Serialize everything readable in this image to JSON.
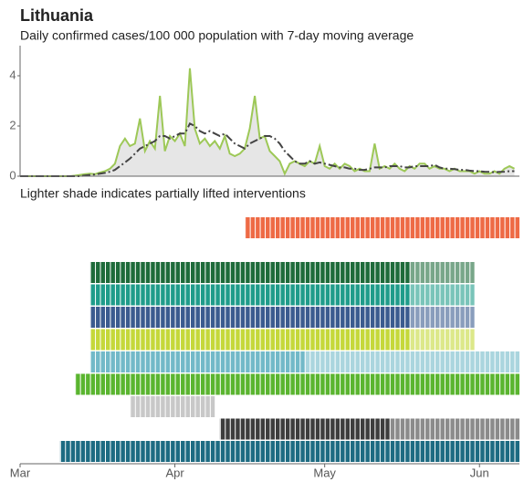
{
  "chart_data": [
    {
      "type": "line",
      "title": "Lithuania",
      "subtitle": "Daily confirmed cases/100 000 population with 7-day moving average",
      "ylim": [
        0,
        5.2
      ],
      "yticks": [
        0,
        2,
        4
      ],
      "series": [
        {
          "color": "#9dc857",
          "fill": "#e6e6e6",
          "values": [
            0,
            0,
            0,
            0,
            0,
            0,
            0,
            0,
            0,
            0,
            0,
            0.02,
            0.05,
            0.08,
            0.1,
            0.08,
            0.15,
            0.2,
            0.3,
            0.5,
            1.2,
            1.5,
            1.2,
            1.3,
            2.3,
            1.0,
            1.4,
            1.1,
            3.2,
            1.0,
            1.6,
            1.4,
            1.7,
            1.2,
            4.3,
            1.9,
            1.3,
            1.5,
            1.2,
            1.4,
            1.1,
            1.6,
            0.9,
            0.8,
            0.9,
            1.1,
            1.9,
            3.2,
            1.5,
            1.6,
            1.0,
            0.8,
            0.6,
            0.1,
            0.5,
            0.6,
            0.5,
            0.4,
            0.6,
            0.5,
            1.2,
            0.4,
            0.3,
            0.5,
            0.3,
            0.5,
            0.4,
            0.2,
            0.3,
            0.2,
            0.2,
            1.3,
            0.3,
            0.4,
            0.3,
            0.5,
            0.3,
            0.2,
            0.4,
            0.3,
            0.5,
            0.5,
            0.3,
            0.4,
            0.3,
            0.3,
            0.2,
            0.3,
            0.2,
            0.2,
            0.2,
            0.1,
            0.2,
            0.1,
            0.1,
            0.2,
            0.1,
            0.3,
            0.4,
            0.3
          ]
        },
        {
          "color": "#444444",
          "dash": "9 3 2 3",
          "values": [
            0,
            0,
            0,
            0,
            0,
            0,
            0,
            0,
            0,
            0,
            0,
            0,
            0,
            0.03,
            0.05,
            0.07,
            0.1,
            0.13,
            0.18,
            0.25,
            0.4,
            0.55,
            0.7,
            0.9,
            1.1,
            1.2,
            1.3,
            1.4,
            1.6,
            1.6,
            1.5,
            1.6,
            1.7,
            1.7,
            2.1,
            2.0,
            1.8,
            1.7,
            1.8,
            1.7,
            1.6,
            1.7,
            1.5,
            1.3,
            1.2,
            1.1,
            1.3,
            1.4,
            1.5,
            1.6,
            1.6,
            1.5,
            1.3,
            1.0,
            0.8,
            0.6,
            0.5,
            0.5,
            0.6,
            0.5,
            0.55,
            0.5,
            0.45,
            0.4,
            0.35,
            0.35,
            0.3,
            0.3,
            0.25,
            0.25,
            0.3,
            0.35,
            0.35,
            0.35,
            0.4,
            0.4,
            0.4,
            0.35,
            0.35,
            0.4,
            0.4,
            0.4,
            0.4,
            0.45,
            0.35,
            0.3,
            0.3,
            0.28,
            0.25,
            0.25,
            0.22,
            0.2,
            0.2,
            0.18,
            0.17,
            0.16,
            0.17,
            0.18,
            0.2,
            0.2
          ]
        }
      ]
    },
    {
      "type": "timeline",
      "note": "Lighter shade indicates partially lifted interventions",
      "categories": [
        "Mar",
        null,
        null,
        null,
        null,
        null,
        null,
        null,
        null,
        null,
        null,
        null,
        null,
        null,
        null,
        null,
        null,
        null,
        null,
        null,
        null,
        null,
        null,
        null,
        null,
        null,
        null,
        null,
        null,
        null,
        null,
        "Apr",
        null,
        null,
        null,
        null,
        null,
        null,
        null,
        null,
        null,
        null,
        null,
        null,
        null,
        null,
        null,
        null,
        null,
        null,
        null,
        null,
        null,
        null,
        null,
        null,
        null,
        null,
        null,
        null,
        null,
        "May",
        null,
        null,
        null,
        null,
        null,
        null,
        null,
        null,
        null,
        null,
        null,
        null,
        null,
        null,
        null,
        null,
        null,
        null,
        null,
        null,
        null,
        null,
        null,
        null,
        null,
        null,
        null,
        null,
        null,
        null,
        "Jun",
        null,
        null,
        null,
        null,
        null,
        null,
        null
      ],
      "bars": [
        {
          "color": "#ee6a45",
          "start": 45,
          "end": 100
        },
        {
          "color": "#1e6b3a",
          "start": 14,
          "lifted": 78,
          "end": 91
        },
        {
          "color": "#1f9c8a",
          "start": 14,
          "lifted": 78,
          "end": 91
        },
        {
          "color": "#3b5b8f",
          "start": 14,
          "lifted": 78,
          "end": 91
        },
        {
          "color": "#c5d83a",
          "start": 14,
          "lifted": 78,
          "end": 91
        },
        {
          "color": "#72b9c8",
          "start": 14,
          "lifted": 57,
          "end": 100
        },
        {
          "color": "#5ab52f",
          "start": 11,
          "end": 100
        },
        {
          "color": "#c8c8c8",
          "start": 22,
          "end": 39
        },
        {
          "color": "#3d3d3d",
          "start": 40,
          "lifted": 74,
          "end": 100
        },
        {
          "color": "#1d6b82",
          "start": 8,
          "end": 100
        }
      ]
    }
  ]
}
